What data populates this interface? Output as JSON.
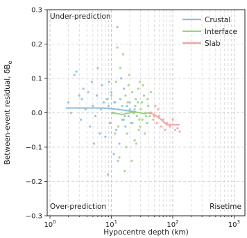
{
  "chart_data": {
    "type": "scatter",
    "title": "",
    "xlabel": "Hypocentre depth (km)",
    "ylabel": "Between-event residual, δB",
    "ylabel_sub": "e",
    "xscale": "log",
    "xlim": [
      0.9,
      1500
    ],
    "ylim": [
      -0.3,
      0.3
    ],
    "y_ticks": [
      0.3,
      0.2,
      0.1,
      0.0,
      -0.1,
      -0.2,
      -0.3
    ],
    "y_tick_labels": [
      "0.3",
      "0.2",
      "0.1",
      "0.0",
      "−0.1",
      "−0.2",
      "−0.3"
    ],
    "x_ticks": [
      1,
      10,
      100,
      1000
    ],
    "x_tick_labels": [
      {
        "base": "10",
        "exp": "0"
      },
      {
        "base": "10",
        "exp": "1"
      },
      {
        "base": "10",
        "exp": "2"
      },
      {
        "base": "10",
        "exp": "3"
      }
    ],
    "grid": true,
    "legend_position": "top-right",
    "annotations": {
      "top_left": "Under-prediction",
      "bottom_left": "Over-prediction",
      "bottom_right": "Risetime"
    },
    "series": [
      {
        "name": "Crustal",
        "color": "#8fbcdf",
        "points": [
          [
            2.0,
            0.03
          ],
          [
            2.2,
            0.0
          ],
          [
            2.5,
            0.11
          ],
          [
            2.7,
            0.12
          ],
          [
            3.0,
            0.05
          ],
          [
            3.2,
            -0.02
          ],
          [
            3.5,
            0.07
          ],
          [
            3.8,
            0.01
          ],
          [
            4.2,
            0.06
          ],
          [
            4.5,
            -0.04
          ],
          [
            4.8,
            0.09
          ],
          [
            5.0,
            0.02
          ],
          [
            5.5,
            -0.01
          ],
          [
            5.8,
            0.05
          ],
          [
            6.0,
            0.13
          ],
          [
            6.5,
            -0.06
          ],
          [
            7.0,
            0.08
          ],
          [
            7.5,
            0.03
          ],
          [
            8.0,
            -0.07
          ],
          [
            8.5,
            0.04
          ],
          [
            9.0,
            0.02
          ],
          [
            9.5,
            -0.03
          ],
          [
            10.0,
            0.06
          ],
          [
            10.5,
            0.0
          ],
          [
            11.0,
            -0.12
          ],
          [
            11.5,
            0.03
          ],
          [
            12.0,
            -0.05
          ],
          [
            12.5,
            0.25
          ],
          [
            13.0,
            0.01
          ],
          [
            13.5,
            -0.09
          ],
          [
            14.0,
            0.04
          ],
          [
            15.0,
            -0.02
          ],
          [
            16.0,
            0.07
          ],
          [
            17.0,
            -0.04
          ],
          [
            18.0,
            0.02
          ],
          [
            19.0,
            -0.01
          ],
          [
            20.0,
            0.03
          ],
          [
            22.0,
            -0.03
          ],
          [
            24.0,
            0.01
          ],
          [
            3.3,
            0.04
          ],
          [
            5.2,
            -0.09
          ],
          [
            6.8,
            0.01
          ],
          [
            8.8,
            -0.18
          ],
          [
            9.2,
            0.09
          ],
          [
            11.2,
            0.03
          ],
          [
            12.8,
            -0.14
          ],
          [
            14.5,
            0.1
          ],
          [
            16.5,
            -0.01
          ]
        ],
        "trend": [
          [
            1.8,
            0.014
          ],
          [
            3,
            0.014
          ],
          [
            5,
            0.014
          ],
          [
            7,
            0.014
          ],
          [
            10,
            0.012
          ],
          [
            15,
            0.008
          ],
          [
            20,
            0.005
          ],
          [
            25,
            0.003
          ]
        ]
      },
      {
        "name": "Interface",
        "color": "#9bd47f",
        "points": [
          [
            10,
            0.05
          ],
          [
            11,
            0.0
          ],
          [
            12,
            0.09
          ],
          [
            13,
            -0.04
          ],
          [
            14,
            0.13
          ],
          [
            15,
            0.02
          ],
          [
            16,
            -0.02
          ],
          [
            17,
            0.05
          ],
          [
            18,
            -0.06
          ],
          [
            19,
            0.08
          ],
          [
            20,
            0.01
          ],
          [
            21,
            -0.03
          ],
          [
            22,
            0.06
          ],
          [
            23,
            0.0
          ],
          [
            24,
            -0.08
          ],
          [
            25,
            0.04
          ],
          [
            26,
            -0.01
          ],
          [
            27,
            0.03
          ],
          [
            28,
            -0.05
          ],
          [
            29,
            0.09
          ],
          [
            30,
            0.01
          ],
          [
            32,
            -0.02
          ],
          [
            34,
            0.05
          ],
          [
            36,
            0.0
          ],
          [
            38,
            -0.03
          ],
          [
            40,
            0.02
          ],
          [
            42,
            -0.01
          ],
          [
            44,
            0.06
          ],
          [
            13.5,
            -0.13
          ],
          [
            15.5,
            0.17
          ],
          [
            17.5,
            -0.1
          ],
          [
            19.5,
            0.11
          ],
          [
            21.5,
            -0.14
          ],
          [
            23.5,
            0.0
          ],
          [
            25.5,
            -0.09
          ],
          [
            27.5,
            0.07
          ],
          [
            29.5,
            -0.04
          ],
          [
            31.5,
            0.03
          ],
          [
            35,
            -0.06
          ],
          [
            39,
            0.04
          ],
          [
            12.5,
            0.19
          ],
          [
            16.5,
            -0.17
          ],
          [
            18.5,
            0.03
          ],
          [
            24.5,
            0.02
          ],
          [
            28.5,
            -0.02
          ],
          [
            33,
            0.08
          ],
          [
            37,
            -0.01
          ],
          [
            11.5,
            -0.06
          ]
        ],
        "trend": [
          [
            10,
            0.0
          ],
          [
            15,
            -0.005
          ],
          [
            20,
            0.0
          ],
          [
            25,
            0.002
          ],
          [
            30,
            0.0
          ],
          [
            35,
            -0.003
          ],
          [
            40,
            0.0
          ],
          [
            45,
            0.002
          ]
        ]
      },
      {
        "name": "Slab",
        "color": "#f4a3a3",
        "points": [
          [
            45,
            0.0
          ],
          [
            48,
            -0.02
          ],
          [
            52,
            0.02
          ],
          [
            55,
            -0.03
          ],
          [
            60,
            -0.01
          ],
          [
            65,
            -0.04
          ],
          [
            70,
            -0.02
          ],
          [
            75,
            -0.05
          ],
          [
            80,
            -0.03
          ],
          [
            90,
            -0.04
          ],
          [
            100,
            -0.02
          ],
          [
            110,
            -0.05
          ],
          [
            120,
            -0.045
          ],
          [
            130,
            -0.055
          ],
          [
            50,
            -0.01
          ],
          [
            58,
            0.01
          ]
        ],
        "trend": [
          [
            40,
            0.0
          ],
          [
            50,
            -0.005
          ],
          [
            60,
            -0.015
          ],
          [
            70,
            -0.025
          ],
          [
            80,
            -0.035
          ],
          [
            100,
            -0.035
          ],
          [
            130,
            -0.035
          ]
        ]
      }
    ]
  }
}
